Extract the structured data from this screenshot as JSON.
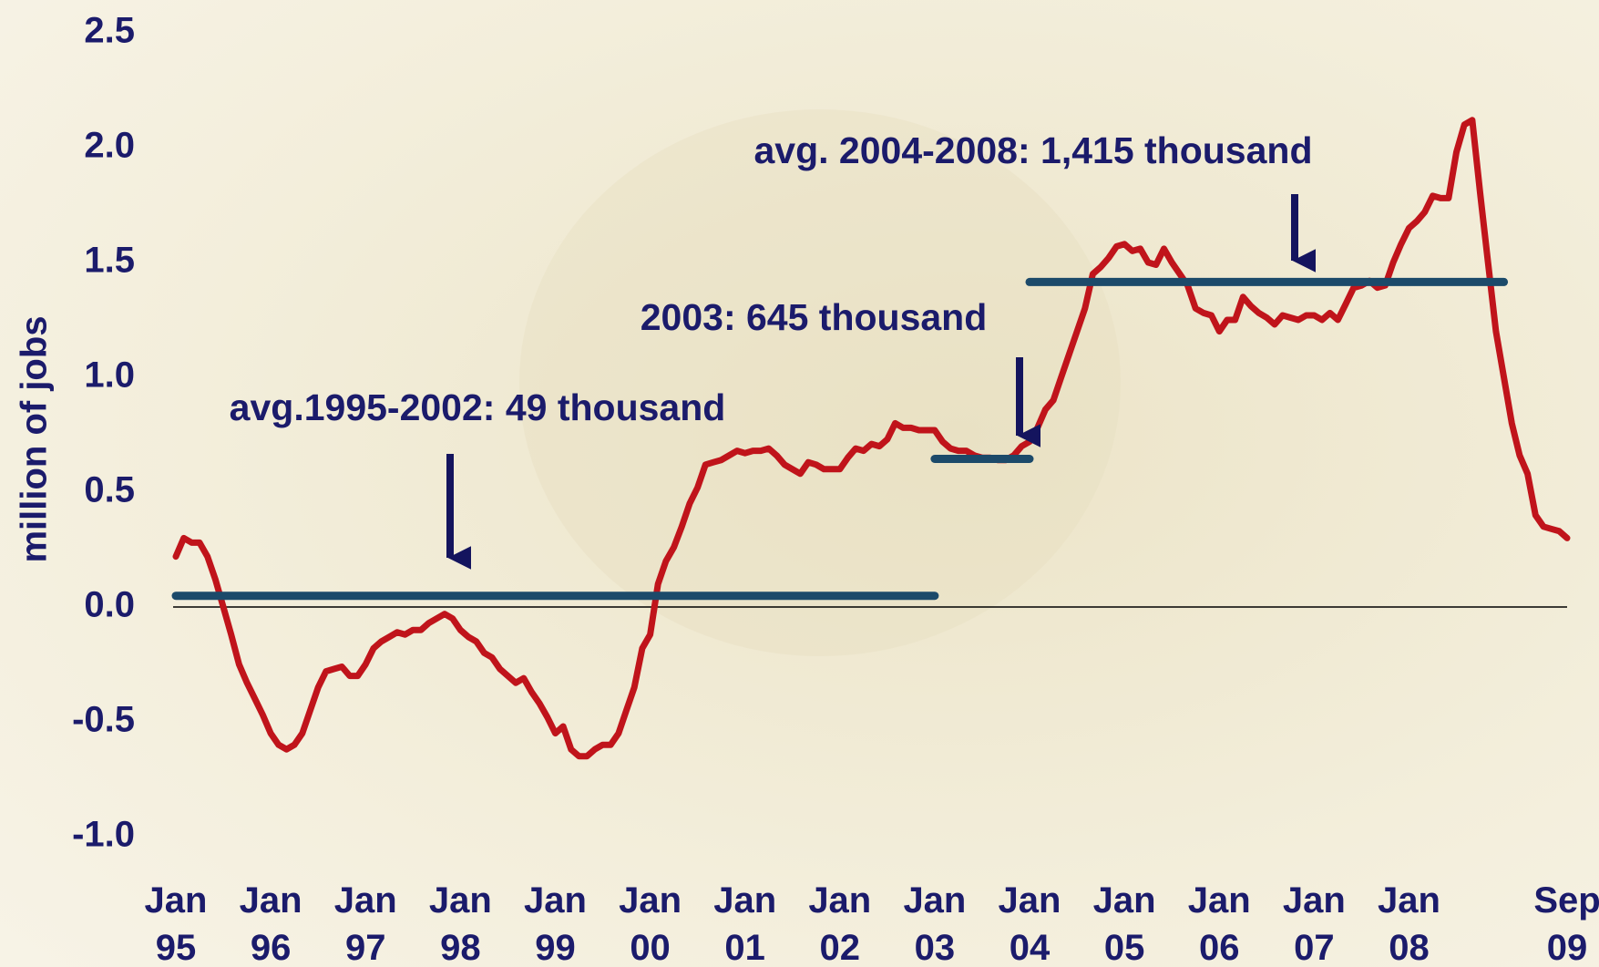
{
  "chart_data": {
    "type": "line",
    "y_label": "million of jobs",
    "xlim": [
      0,
      176
    ],
    "xticks": [
      {
        "value": 0,
        "label": "Jan 95"
      },
      {
        "value": 12,
        "label": "Jan 96"
      },
      {
        "value": 24,
        "label": "Jan 97"
      },
      {
        "value": 36,
        "label": "Jan 98"
      },
      {
        "value": 48,
        "label": "Jan 99"
      },
      {
        "value": 60,
        "label": "Jan 00"
      },
      {
        "value": 72,
        "label": "Jan 01"
      },
      {
        "value": 84,
        "label": "Jan 02"
      },
      {
        "value": 96,
        "label": "Jan 03"
      },
      {
        "value": 108,
        "label": "Jan 04"
      },
      {
        "value": 120,
        "label": "Jan 05"
      },
      {
        "value": 132,
        "label": "Jan 06"
      },
      {
        "value": 144,
        "label": "Jan 07"
      },
      {
        "value": 156,
        "label": "Jan 08"
      },
      {
        "value": 176,
        "label": "Sep 09"
      }
    ],
    "ylim": [
      -1.0,
      2.5
    ],
    "yticks": [
      {
        "value": -1.0,
        "label": "-1.0"
      },
      -0.5,
      {
        "value": 0,
        "label": "0.0"
      },
      0.5,
      {
        "value": 1.0,
        "label": "1.0"
      },
      1.5,
      {
        "value": 2.0,
        "label": "2.0"
      },
      2.5
    ],
    "zero_line": true,
    "series": [
      {
        "color": "#c0141b",
        "values": [
          0.22,
          0.3,
          0.28,
          0.28,
          0.22,
          0.12,
          0.0,
          -0.12,
          -0.25,
          -0.33,
          -0.4,
          -0.47,
          -0.55,
          -0.6,
          -0.62,
          -0.6,
          -0.55,
          -0.45,
          -0.35,
          -0.28,
          -0.27,
          -0.26,
          -0.3,
          -0.3,
          -0.25,
          -0.18,
          -0.15,
          -0.13,
          -0.11,
          -0.12,
          -0.1,
          -0.1,
          -0.07,
          -0.05,
          -0.03,
          -0.05,
          -0.1,
          -0.13,
          -0.15,
          -0.2,
          -0.22,
          -0.27,
          -0.3,
          -0.33,
          -0.31,
          -0.37,
          -0.42,
          -0.48,
          -0.55,
          -0.52,
          -0.62,
          -0.65,
          -0.65,
          -0.62,
          -0.6,
          -0.6,
          -0.55,
          -0.45,
          -0.35,
          -0.18,
          -0.12,
          0.1,
          0.2,
          0.26,
          0.35,
          0.45,
          0.52,
          0.62,
          0.63,
          0.64,
          0.66,
          0.68,
          0.67,
          0.68,
          0.68,
          0.69,
          0.66,
          0.62,
          0.6,
          0.58,
          0.63,
          0.62,
          0.6,
          0.6,
          0.6,
          0.65,
          0.69,
          0.68,
          0.71,
          0.7,
          0.73,
          0.8,
          0.78,
          0.78,
          0.77,
          0.77,
          0.77,
          0.72,
          0.69,
          0.68,
          0.68,
          0.66,
          0.65,
          0.65,
          0.64,
          0.64,
          0.66,
          0.7,
          0.72,
          0.78,
          0.86,
          0.9,
          1.0,
          1.1,
          1.2,
          1.3,
          1.45,
          1.48,
          1.52,
          1.57,
          1.58,
          1.55,
          1.56,
          1.5,
          1.49,
          1.56,
          1.5,
          1.45,
          1.4,
          1.3,
          1.28,
          1.27,
          1.2,
          1.25,
          1.25,
          1.35,
          1.31,
          1.28,
          1.26,
          1.23,
          1.27,
          1.26,
          1.25,
          1.27,
          1.27,
          1.25,
          1.28,
          1.25,
          1.32,
          1.39,
          1.4,
          1.42,
          1.39,
          1.4,
          1.5,
          1.58,
          1.65,
          1.68,
          1.72,
          1.79,
          1.78,
          1.78,
          1.98,
          2.1,
          2.12,
          1.8,
          1.5,
          1.2,
          1.0,
          0.8,
          0.66,
          0.58,
          0.4,
          0.35,
          0.34,
          0.33,
          0.3
        ]
      },
      {
        "name": "avg.1995-2002: 49 thousand",
        "color": "#1c4a6a",
        "x": [
          0,
          96
        ],
        "values": [
          0.049,
          0.049
        ]
      },
      {
        "name": "2003: 645 thousand",
        "color": "#1c4a6a",
        "x": [
          96,
          108
        ],
        "values": [
          0.645,
          0.645
        ]
      },
      {
        "name": "avg. 2004-2008: 1,415 thousand",
        "color": "#1c4a6a",
        "x": [
          108,
          168
        ],
        "values": [
          1.415,
          1.415
        ]
      }
    ]
  }
}
